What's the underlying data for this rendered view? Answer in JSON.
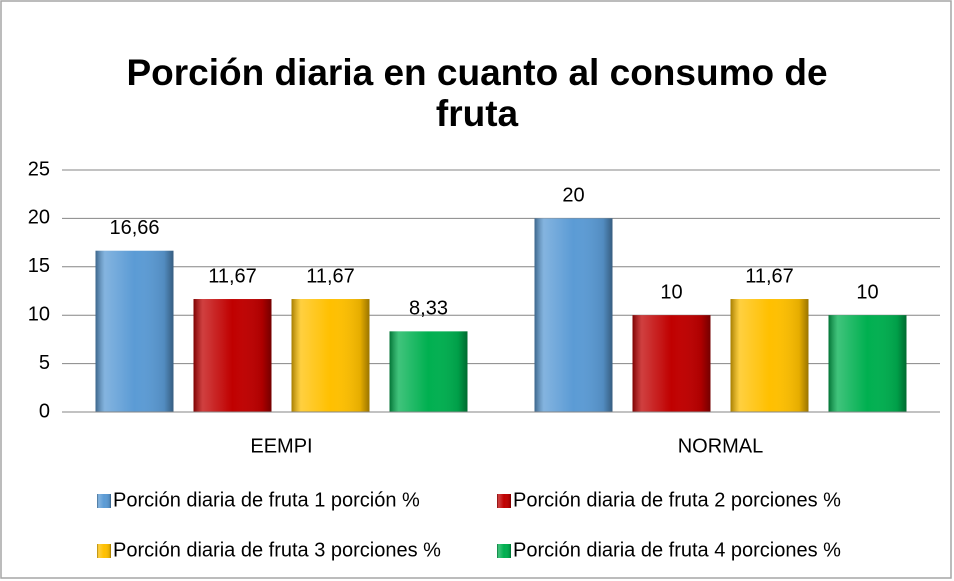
{
  "chart_data": {
    "type": "bar",
    "title": "Porción diaria en cuanto al consumo de fruta",
    "categories": [
      "EEMPI",
      "NORMAL"
    ],
    "series": [
      {
        "name": "Porción diaria de fruta 1 porción %",
        "color": "#5b9bd5",
        "values": [
          16.66,
          20
        ],
        "value_labels": [
          "16,66",
          "20"
        ]
      },
      {
        "name": "Porción diaria de fruta 2 porciones %",
        "color": "#c00000",
        "values": [
          11.67,
          10
        ],
        "value_labels": [
          "11,67",
          "10"
        ]
      },
      {
        "name": "Porción diaria de fruta 3 porciones %",
        "color": "#ffc000",
        "values": [
          11.67,
          11.67
        ],
        "value_labels": [
          "11,67",
          "11,67"
        ]
      },
      {
        "name": "Porción diaria de fruta 4 porciones %",
        "color": "#00b050",
        "values": [
          8.33,
          10
        ],
        "value_labels": [
          "8,33",
          "10"
        ]
      }
    ],
    "ylim": [
      0,
      25
    ],
    "yticks": [
      0,
      5,
      10,
      15,
      20,
      25
    ],
    "grid": true,
    "legend": "bottom"
  }
}
